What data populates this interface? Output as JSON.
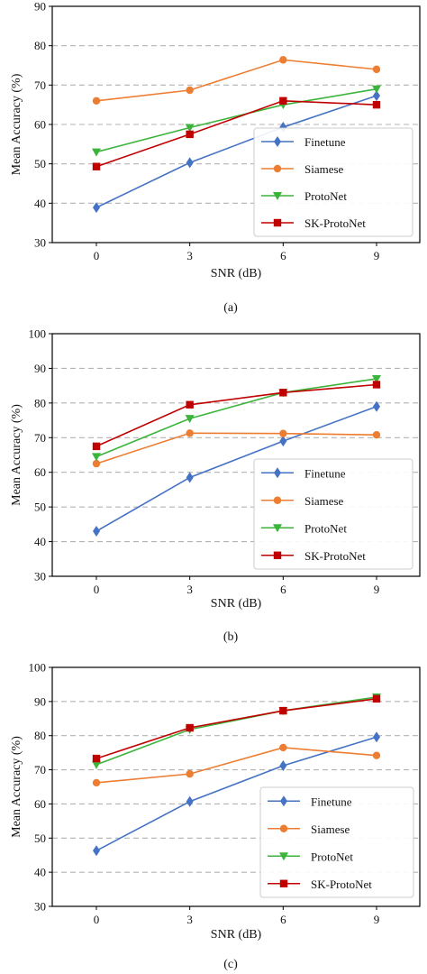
{
  "chart_data": [
    {
      "type": "line",
      "panel_label": "(a)",
      "xlabel": "SNR (dB)",
      "ylabel": "Mean Accuracy (%)",
      "x": [
        0,
        3,
        6,
        9
      ],
      "x_ticks": [
        "0",
        "3",
        "6",
        "9"
      ],
      "ylim": [
        30,
        90
      ],
      "y_ticks": [
        "30",
        "40",
        "50",
        "60",
        "70",
        "80",
        "90"
      ],
      "grid": "horizontal-dashed",
      "legend_position": "lower-right",
      "series": [
        {
          "name": "Finetune",
          "color": "#4472c4",
          "marker": "diamond",
          "values": [
            38.9,
            50.3,
            59.3,
            67.3
          ]
        },
        {
          "name": "Siamese",
          "color": "#ed7d31",
          "marker": "circle",
          "values": [
            66.0,
            68.7,
            76.4,
            74.0
          ]
        },
        {
          "name": "ProtoNet",
          "color": "#3cb43c",
          "marker": "triangle-down",
          "values": [
            53.0,
            59.2,
            65.0,
            69.0
          ]
        },
        {
          "name": "SK-ProtoNet",
          "color": "#c00000",
          "marker": "square",
          "values": [
            49.3,
            57.5,
            66.0,
            65.0
          ]
        }
      ]
    },
    {
      "type": "line",
      "panel_label": "(b)",
      "xlabel": "SNR (dB)",
      "ylabel": "Mean Accuracy (%)",
      "x": [
        0,
        3,
        6,
        9
      ],
      "x_ticks": [
        "0",
        "3",
        "6",
        "9"
      ],
      "ylim": [
        30,
        100
      ],
      "y_ticks": [
        "30",
        "40",
        "50",
        "60",
        "70",
        "80",
        "90",
        "100"
      ],
      "grid": "horizontal-dashed",
      "legend_position": "lower-right",
      "series": [
        {
          "name": "Finetune",
          "color": "#4472c4",
          "marker": "diamond",
          "values": [
            43.0,
            58.5,
            69.0,
            79.0
          ]
        },
        {
          "name": "Siamese",
          "color": "#ed7d31",
          "marker": "circle",
          "values": [
            62.5,
            71.3,
            71.2,
            70.8
          ]
        },
        {
          "name": "ProtoNet",
          "color": "#3cb43c",
          "marker": "triangle-down",
          "values": [
            64.5,
            75.5,
            83.0,
            87.0
          ]
        },
        {
          "name": "SK-ProtoNet",
          "color": "#c00000",
          "marker": "square",
          "values": [
            67.5,
            79.5,
            83.0,
            85.3
          ]
        }
      ]
    },
    {
      "type": "line",
      "panel_label": "(c)",
      "xlabel": "SNR (dB)",
      "ylabel": "Mean Accuracy (%)",
      "x": [
        0,
        3,
        6,
        9
      ],
      "x_ticks": [
        "0",
        "3",
        "6",
        "9"
      ],
      "ylim": [
        30,
        100
      ],
      "y_ticks": [
        "30",
        "40",
        "50",
        "60",
        "70",
        "80",
        "90",
        "100"
      ],
      "grid": "horizontal-dashed",
      "legend_position": "lower-right",
      "series": [
        {
          "name": "Finetune",
          "color": "#4472c4",
          "marker": "diamond",
          "values": [
            46.3,
            60.7,
            71.2,
            79.6
          ]
        },
        {
          "name": "Siamese",
          "color": "#ed7d31",
          "marker": "circle",
          "values": [
            66.2,
            68.8,
            76.5,
            74.2
          ]
        },
        {
          "name": "ProtoNet",
          "color": "#3cb43c",
          "marker": "triangle-down",
          "values": [
            71.5,
            81.8,
            87.3,
            91.3
          ]
        },
        {
          "name": "SK-ProtoNet",
          "color": "#c00000",
          "marker": "square",
          "values": [
            73.3,
            82.3,
            87.3,
            90.8
          ]
        }
      ]
    }
  ]
}
